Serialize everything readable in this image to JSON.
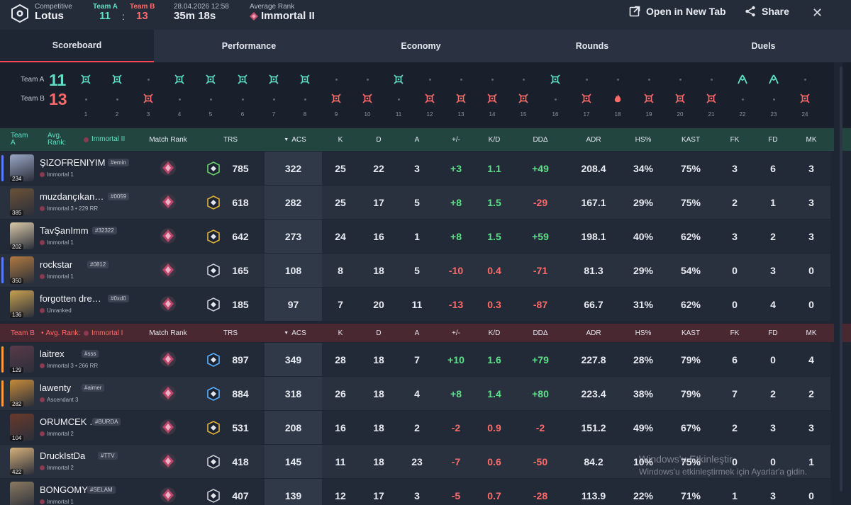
{
  "header": {
    "mode": "Competitive",
    "map": "Lotus",
    "team_a_label": "Team A",
    "team_b_label": "Team B",
    "score_a": "11",
    "score_sep": ":",
    "score_b": "13",
    "date": "28.04.2026 12:58",
    "duration": "35m 18s",
    "avg_rank_label": "Average Rank",
    "avg_rank_value": "Immortal II",
    "open_tab_label": "Open in New Tab",
    "share_label": "Share"
  },
  "tabs": [
    {
      "label": "Scoreboard",
      "active": true
    },
    {
      "label": "Performance",
      "active": false
    },
    {
      "label": "Economy",
      "active": false
    },
    {
      "label": "Rounds",
      "active": false
    },
    {
      "label": "Duels",
      "active": false
    }
  ],
  "rounds": {
    "team_a_label": "Team A",
    "team_b_label": "Team B",
    "team_a_score": "11",
    "team_b_score": "13",
    "numbers": [
      "1",
      "2",
      "3",
      "4",
      "5",
      "6",
      "7",
      "8",
      "9",
      "10",
      "11",
      "12",
      "13",
      "14",
      "15",
      "16",
      "17",
      "18",
      "19",
      "20",
      "21",
      "22",
      "23",
      "24"
    ],
    "winners": [
      "A",
      "A",
      "B",
      "A",
      "A",
      "A",
      "A",
      "A",
      "B",
      "B",
      "A",
      "B",
      "B",
      "B",
      "B",
      "A",
      "B",
      "B",
      "B",
      "B",
      "B",
      "A",
      "A",
      "B"
    ],
    "icons": [
      "elim",
      "elim",
      "elim",
      "elim",
      "elim",
      "elim",
      "elim",
      "elim",
      "elim",
      "elim",
      "elim",
      "elim",
      "elim",
      "elim",
      "elim",
      "elim",
      "elim",
      "spike",
      "elim",
      "elim",
      "elim",
      "defuse",
      "defuse",
      "elim"
    ],
    "color_a": "#5fe0c6",
    "color_b": "#ff6b6b"
  },
  "team_a_header": {
    "team": "Team A",
    "avg_label": "Avg. Rank:",
    "avg_rank": "Immortal II",
    "cols": [
      "Match Rank",
      "TRS",
      "ACS",
      "K",
      "D",
      "A",
      "+/-",
      "K/D",
      "DDΔ",
      "ADR",
      "HS%",
      "KAST",
      "FK",
      "FD",
      "MK"
    ]
  },
  "team_b_header": {
    "team": "Team B",
    "avg_label": "Avg. Rank:",
    "avg_rank": "Immortal I",
    "cols": [
      "Match Rank",
      "TRS",
      "ACS",
      "K",
      "D",
      "A",
      "+/-",
      "K/D",
      "DDΔ",
      "ADR",
      "HS%",
      "KAST",
      "FK",
      "FD",
      "MK"
    ]
  },
  "team_a": [
    {
      "name": "ŞIZOFRENIYIM",
      "tag": "#emin",
      "rank": "Immortal 1",
      "level": "234",
      "trs": "785",
      "acs": "322",
      "k": "25",
      "d": "22",
      "a": "3",
      "pm": "+3",
      "kd": "1.1",
      "dd": "+49",
      "adr": "208.4",
      "hs": "34%",
      "kast": "75%",
      "fk": "3",
      "fd": "6",
      "mk": "3",
      "stripe": "#5a7bff"
    },
    {
      "name": "muzdançıkan…",
      "tag": "#0059",
      "rank": "Immortal 3 • 229 RR",
      "level": "385",
      "trs": "618",
      "acs": "282",
      "k": "25",
      "d": "17",
      "a": "5",
      "pm": "+8",
      "kd": "1.5",
      "dd": "-29",
      "adr": "167.1",
      "hs": "29%",
      "kast": "75%",
      "fk": "2",
      "fd": "1",
      "mk": "3",
      "stripe": ""
    },
    {
      "name": "TavŞanImm",
      "tag": "#32322",
      "rank": "Immortal 1",
      "level": "202",
      "trs": "642",
      "acs": "273",
      "k": "24",
      "d": "16",
      "a": "1",
      "pm": "+8",
      "kd": "1.5",
      "dd": "+59",
      "adr": "198.1",
      "hs": "40%",
      "kast": "62%",
      "fk": "3",
      "fd": "2",
      "mk": "3",
      "stripe": ""
    },
    {
      "name": "rockstar",
      "tag": "#0812",
      "rank": "Immortal 1",
      "level": "350",
      "trs": "165",
      "acs": "108",
      "k": "8",
      "d": "18",
      "a": "5",
      "pm": "-10",
      "kd": "0.4",
      "dd": "-71",
      "adr": "81.3",
      "hs": "29%",
      "kast": "54%",
      "fk": "0",
      "fd": "3",
      "mk": "0",
      "stripe": "#5a7bff"
    },
    {
      "name": "forgotten dre…",
      "tag": "#0xd0",
      "rank": "Unranked",
      "level": "136",
      "trs": "185",
      "acs": "97",
      "k": "7",
      "d": "20",
      "a": "11",
      "pm": "-13",
      "kd": "0.3",
      "dd": "-87",
      "adr": "66.7",
      "hs": "31%",
      "kast": "62%",
      "fk": "0",
      "fd": "4",
      "mk": "0",
      "stripe": ""
    }
  ],
  "team_b": [
    {
      "name": "laitrex",
      "tag": "#sss",
      "rank": "Immortal 3 • 266 RR",
      "level": "129",
      "trs": "897",
      "acs": "349",
      "k": "28",
      "d": "18",
      "a": "7",
      "pm": "+10",
      "kd": "1.6",
      "dd": "+79",
      "adr": "227.8",
      "hs": "28%",
      "kast": "79%",
      "fk": "6",
      "fd": "0",
      "mk": "4",
      "stripe": "#ff9a3a"
    },
    {
      "name": "lawenty",
      "tag": "#aimer",
      "rank": "Ascendant 3",
      "level": "282",
      "trs": "884",
      "acs": "318",
      "k": "26",
      "d": "18",
      "a": "4",
      "pm": "+8",
      "kd": "1.4",
      "dd": "+80",
      "adr": "223.4",
      "hs": "38%",
      "kast": "79%",
      "fk": "7",
      "fd": "2",
      "mk": "2",
      "stripe": "#ff9a3a"
    },
    {
      "name": "ORUMCEK …",
      "tag": "#BURDA",
      "rank": "Immortal 2",
      "level": "104",
      "trs": "531",
      "acs": "208",
      "k": "16",
      "d": "18",
      "a": "2",
      "pm": "-2",
      "kd": "0.9",
      "dd": "-2",
      "adr": "151.2",
      "hs": "49%",
      "kast": "67%",
      "fk": "2",
      "fd": "3",
      "mk": "3",
      "stripe": ""
    },
    {
      "name": "DruckIstDa",
      "tag": "#TTV",
      "rank": "Immortal 2",
      "level": "422",
      "trs": "418",
      "acs": "145",
      "k": "11",
      "d": "18",
      "a": "23",
      "pm": "-7",
      "kd": "0.6",
      "dd": "-50",
      "adr": "84.2",
      "hs": "10%",
      "kast": "75%",
      "fk": "0",
      "fd": "0",
      "mk": "1",
      "stripe": ""
    },
    {
      "name": "BONGOMY…",
      "tag": "#SELAM",
      "rank": "Immortal 1",
      "level": "",
      "trs": "407",
      "acs": "139",
      "k": "12",
      "d": "17",
      "a": "3",
      "pm": "-5",
      "kd": "0.7",
      "dd": "-28",
      "adr": "113.9",
      "hs": "22%",
      "kast": "71%",
      "fk": "1",
      "fd": "3",
      "mk": "0",
      "stripe": ""
    }
  ],
  "watermark": {
    "line1": "Windows'u Etkinleştir",
    "line2": "Windows'u etkinleştirmek için Ayarlar'a gidin."
  }
}
